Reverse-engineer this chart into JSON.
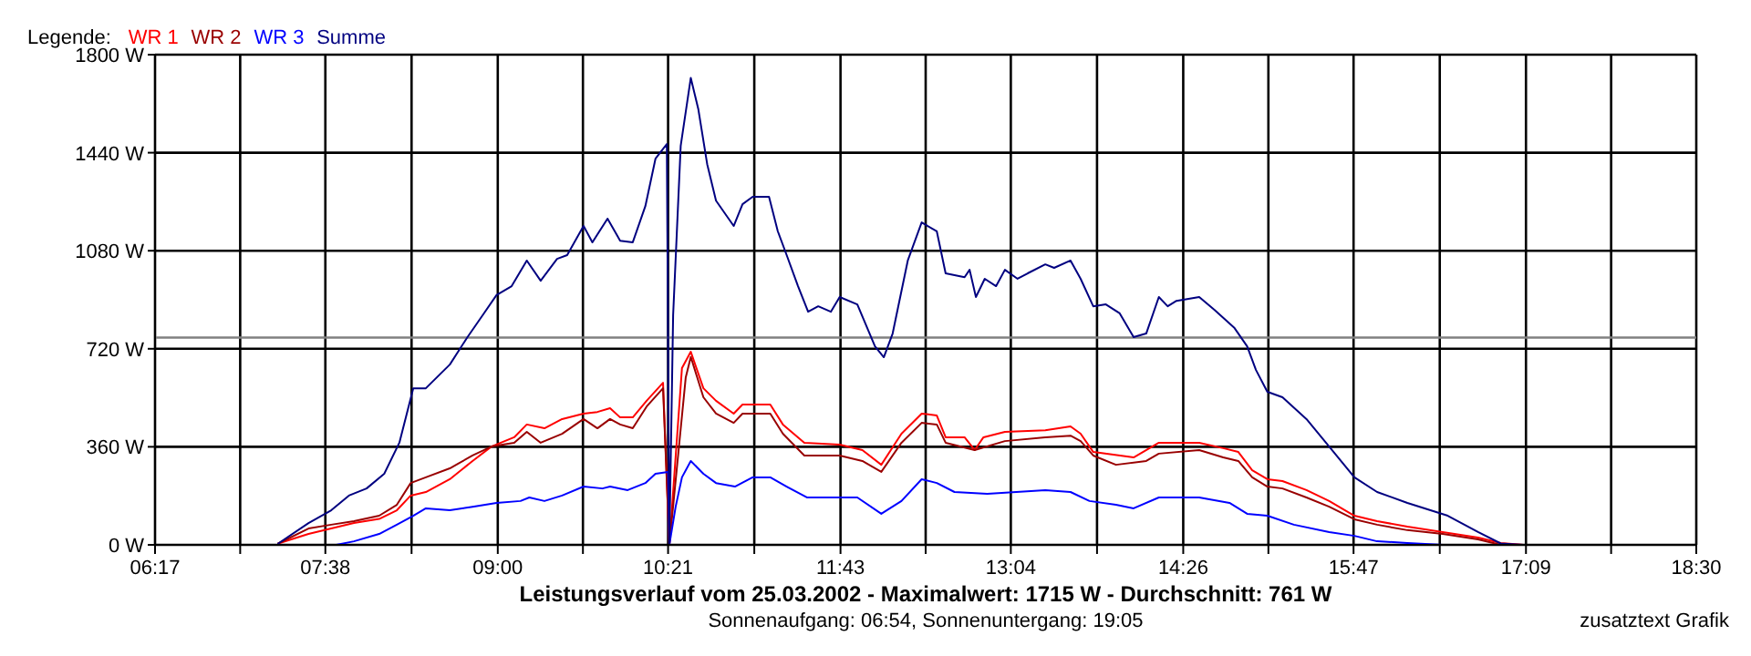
{
  "chart_data": {
    "type": "line",
    "title": "Leistungsverlauf vom 25.03.2002 - Maximalwert: 1715 W - Durchschnitt: 761 W",
    "subtitle": "Sonnenaufgang: 06:54, Sonnenuntergang: 19:05",
    "annotations": [
      "zusatztext Grafik"
    ],
    "legend_title": "Legende:",
    "legend": "top left",
    "grid": true,
    "xlim": [
      6.2833,
      18.5
    ],
    "ylim": [
      0,
      1800
    ],
    "xticks": [
      {
        "value": 6.2833,
        "label": "06:17"
      },
      {
        "value": 6.9583,
        "label": null
      },
      {
        "value": 7.6333,
        "label": "07:38"
      },
      {
        "value": 8.3167,
        "label": null
      },
      {
        "value": 9,
        "label": "09:00"
      },
      {
        "value": 9.675,
        "label": null
      },
      {
        "value": 10.35,
        "label": "10:21"
      },
      {
        "value": 11.0333,
        "label": null
      },
      {
        "value": 11.7167,
        "label": "11:43"
      },
      {
        "value": 12.3917,
        "label": null
      },
      {
        "value": 13.0667,
        "label": "13:04"
      },
      {
        "value": 13.75,
        "label": null
      },
      {
        "value": 14.4333,
        "label": "14:26"
      },
      {
        "value": 15.1083,
        "label": null
      },
      {
        "value": 15.7833,
        "label": "15:47"
      },
      {
        "value": 16.4667,
        "label": null
      },
      {
        "value": 17.15,
        "label": "17:09"
      },
      {
        "value": 17.825,
        "label": null
      },
      {
        "value": 18.5,
        "label": "18:30"
      }
    ],
    "yticks": [
      {
        "value": 0,
        "label": "0 W"
      },
      {
        "value": 360,
        "label": "360 W"
      },
      {
        "value": 720,
        "label": "720 W"
      },
      {
        "value": 1080,
        "label": "1080 W"
      },
      {
        "value": 1440,
        "label": "1440 W"
      },
      {
        "value": 1800,
        "label": "1800 W"
      }
    ],
    "ref_lines": [
      {
        "axis": "y",
        "value": 761,
        "color": "#808080"
      }
    ],
    "series": [
      {
        "name": "WR 1",
        "color": "#ff0000",
        "x": [
          7.26,
          7.5,
          7.68,
          7.86,
          8.06,
          8.2,
          8.31,
          8.43,
          8.62,
          8.8,
          8.95,
          9.13,
          9.23,
          9.37,
          9.51,
          9.68,
          9.79,
          9.89,
          9.97,
          10.07,
          10.18,
          10.31,
          10.36,
          10.46,
          10.53,
          10.63,
          10.73,
          10.87,
          10.94,
          11.16,
          11.26,
          11.43,
          11.71,
          11.89,
          12.04,
          12.2,
          12.36,
          12.48,
          12.55,
          12.7,
          12.78,
          12.85,
          13.02,
          13.34,
          13.54,
          13.62,
          13.72,
          14.04,
          14.24,
          14.56,
          14.75,
          14.87,
          14.98,
          15.1,
          15.22,
          15.41,
          15.59,
          15.79,
          15.97,
          16.21,
          16.49,
          16.77,
          16.95,
          17.13
        ],
        "values": [
          5,
          40,
          60,
          80,
          95,
          127,
          181,
          194,
          241,
          308,
          361,
          395,
          442,
          428,
          462,
          482,
          488,
          502,
          468,
          468,
          529,
          595,
          0,
          649,
          709,
          575,
          529,
          482,
          515,
          515,
          442,
          375,
          368,
          348,
          294,
          408,
          482,
          475,
          395,
          395,
          348,
          395,
          415,
          421,
          435,
          408,
          341,
          321,
          375,
          375,
          355,
          341,
          274,
          241,
          234,
          201,
          161,
          107,
          87,
          67,
          47,
          27,
          7,
          0
        ]
      },
      {
        "name": "WR 2",
        "color": "#990000",
        "x": [
          7.26,
          7.5,
          7.68,
          7.86,
          8.06,
          8.2,
          8.31,
          8.43,
          8.62,
          8.8,
          8.95,
          9.13,
          9.23,
          9.34,
          9.51,
          9.68,
          9.79,
          9.89,
          9.97,
          10.07,
          10.18,
          10.31,
          10.36,
          10.49,
          10.53,
          10.63,
          10.73,
          10.87,
          10.94,
          11.16,
          11.26,
          11.43,
          11.71,
          11.89,
          12.04,
          12.2,
          12.36,
          12.48,
          12.55,
          12.78,
          13.02,
          13.34,
          13.54,
          13.62,
          13.72,
          13.9,
          14.14,
          14.24,
          14.56,
          14.75,
          14.87,
          14.98,
          15.1,
          15.22,
          15.41,
          15.59,
          15.79,
          15.97,
          16.21,
          16.49,
          16.77,
          16.95,
          17.13
        ],
        "values": [
          5,
          60,
          74,
          87,
          107,
          147,
          227,
          248,
          281,
          328,
          361,
          375,
          415,
          375,
          408,
          462,
          428,
          462,
          442,
          428,
          508,
          575,
          0,
          615,
          690,
          542,
          482,
          448,
          482,
          482,
          408,
          328,
          328,
          308,
          268,
          375,
          448,
          442,
          375,
          348,
          381,
          395,
          401,
          381,
          328,
          294,
          308,
          335,
          348,
          321,
          308,
          248,
          214,
          207,
          174,
          140,
          94,
          74,
          54,
          40,
          20,
          0,
          0
        ]
      },
      {
        "name": "WR 3",
        "color": "#0000ff",
        "x": [
          7.58,
          7.72,
          7.86,
          8.06,
          8.2,
          8.33,
          8.43,
          8.62,
          8.8,
          8.99,
          9.18,
          9.25,
          9.37,
          9.51,
          9.68,
          9.83,
          9.89,
          10.03,
          10.17,
          10.25,
          10.35,
          10.36,
          10.41,
          10.46,
          10.53,
          10.63,
          10.73,
          10.88,
          11.02,
          11.16,
          11.29,
          11.45,
          11.85,
          12.04,
          12.2,
          12.36,
          12.48,
          12.62,
          12.88,
          13.34,
          13.54,
          13.69,
          13.9,
          14.04,
          14.24,
          14.56,
          14.8,
          14.94,
          15.1,
          15.31,
          15.59,
          15.79,
          15.97,
          16.21,
          16.49,
          16.71
        ],
        "values": [
          0,
          0,
          13,
          40,
          74,
          107,
          134,
          127,
          140,
          154,
          161,
          174,
          161,
          181,
          214,
          207,
          214,
          201,
          227,
          261,
          268,
          0,
          140,
          248,
          308,
          261,
          227,
          214,
          248,
          248,
          214,
          174,
          174,
          114,
          161,
          241,
          227,
          194,
          187,
          201,
          194,
          161,
          147,
          134,
          174,
          174,
          154,
          114,
          107,
          74,
          47,
          33,
          13,
          7,
          0,
          0
        ]
      },
      {
        "name": "Summe",
        "color": "#000080",
        "x": [
          7.26,
          7.5,
          7.68,
          7.82,
          7.96,
          8.1,
          8.22,
          8.33,
          8.43,
          8.62,
          8.76,
          8.88,
          8.99,
          9.11,
          9.23,
          9.34,
          9.47,
          9.55,
          9.68,
          9.75,
          9.87,
          9.97,
          10.07,
          10.17,
          10.25,
          10.34,
          10.36,
          10.39,
          10.45,
          10.53,
          10.59,
          10.66,
          10.73,
          10.87,
          10.94,
          11.02,
          11.15,
          11.22,
          11.29,
          11.38,
          11.46,
          11.54,
          11.64,
          11.71,
          11.85,
          11.99,
          12.06,
          12.13,
          12.25,
          12.36,
          12.48,
          12.55,
          12.7,
          12.74,
          12.79,
          12.86,
          12.95,
          13.02,
          13.12,
          13.2,
          13.34,
          13.41,
          13.54,
          13.62,
          13.72,
          13.82,
          13.93,
          14.04,
          14.14,
          14.24,
          14.31,
          14.38,
          14.56,
          14.68,
          14.84,
          14.94,
          15.01,
          15.1,
          15.22,
          15.41,
          15.59,
          15.79,
          15.97,
          16.21,
          16.53,
          16.77,
          16.95,
          17.13
        ],
        "values": [
          5,
          80,
          127,
          181,
          207,
          261,
          375,
          575,
          575,
          662,
          763,
          843,
          917,
          950,
          1044,
          970,
          1050,
          1064,
          1171,
          1111,
          1198,
          1117,
          1111,
          1244,
          1418,
          1472,
          0,
          843,
          1465,
          1715,
          1599,
          1398,
          1264,
          1171,
          1251,
          1278,
          1278,
          1151,
          1064,
          950,
          856,
          876,
          856,
          910,
          883,
          729,
          689,
          776,
          1044,
          1184,
          1151,
          997,
          983,
          1010,
          910,
          977,
          950,
          1010,
          977,
          997,
          1030,
          1017,
          1044,
          977,
          876,
          883,
          850,
          763,
          776,
          910,
          876,
          896,
          910,
          863,
          796,
          729,
          642,
          562,
          542,
          462,
          361,
          248,
          194,
          154,
          107,
          47,
          5,
          0
        ]
      }
    ]
  }
}
